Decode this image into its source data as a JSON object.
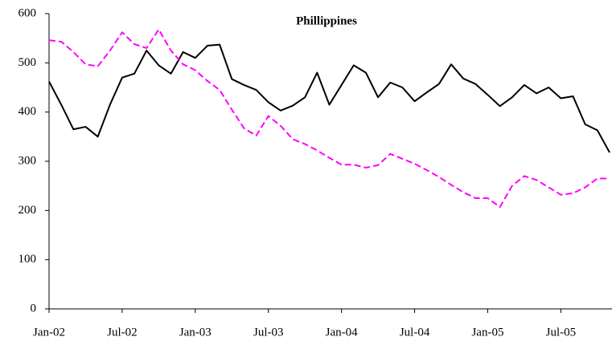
{
  "chart_data": {
    "type": "line",
    "title": "Phillippines",
    "categories": [
      "Jan-02",
      null,
      null,
      null,
      null,
      null,
      "Jul-02",
      null,
      null,
      null,
      null,
      null,
      "Jan-03",
      null,
      null,
      null,
      null,
      null,
      "Jul-03",
      null,
      null,
      null,
      null,
      null,
      "Jan-04",
      null,
      null,
      null,
      null,
      null,
      "Jul-04",
      null,
      null,
      null,
      null,
      null,
      "Jan-05",
      null,
      null,
      null,
      null,
      null,
      "Jul-05",
      null,
      null,
      null,
      null
    ],
    "series": [
      {
        "color": "#000000",
        "dash": "solid",
        "values": [
          462,
          415,
          365,
          370,
          350,
          415,
          470,
          478,
          525,
          495,
          478,
          522,
          510,
          535,
          537,
          467,
          455,
          445,
          420,
          403,
          413,
          430,
          480,
          415,
          455,
          495,
          480,
          430,
          460,
          450,
          422,
          440,
          457,
          497,
          468,
          457,
          435,
          412,
          430,
          455,
          438,
          450,
          428,
          432,
          375,
          363,
          318
        ]
      },
      {
        "color": "#ff00ff",
        "dash": "dashed",
        "values": [
          546,
          543,
          522,
          497,
          493,
          525,
          562,
          538,
          530,
          568,
          525,
          497,
          485,
          463,
          445,
          405,
          367,
          352,
          392,
          372,
          345,
          335,
          322,
          307,
          293,
          293,
          287,
          292,
          315,
          305,
          295,
          282,
          268,
          252,
          237,
          225,
          225,
          207,
          250,
          270,
          262,
          247,
          232,
          235,
          247,
          265,
          265
        ]
      }
    ],
    "ylim": [
      0,
      600
    ],
    "yticks": [
      0,
      100,
      200,
      300,
      400,
      500,
      600
    ],
    "grid": false
  }
}
